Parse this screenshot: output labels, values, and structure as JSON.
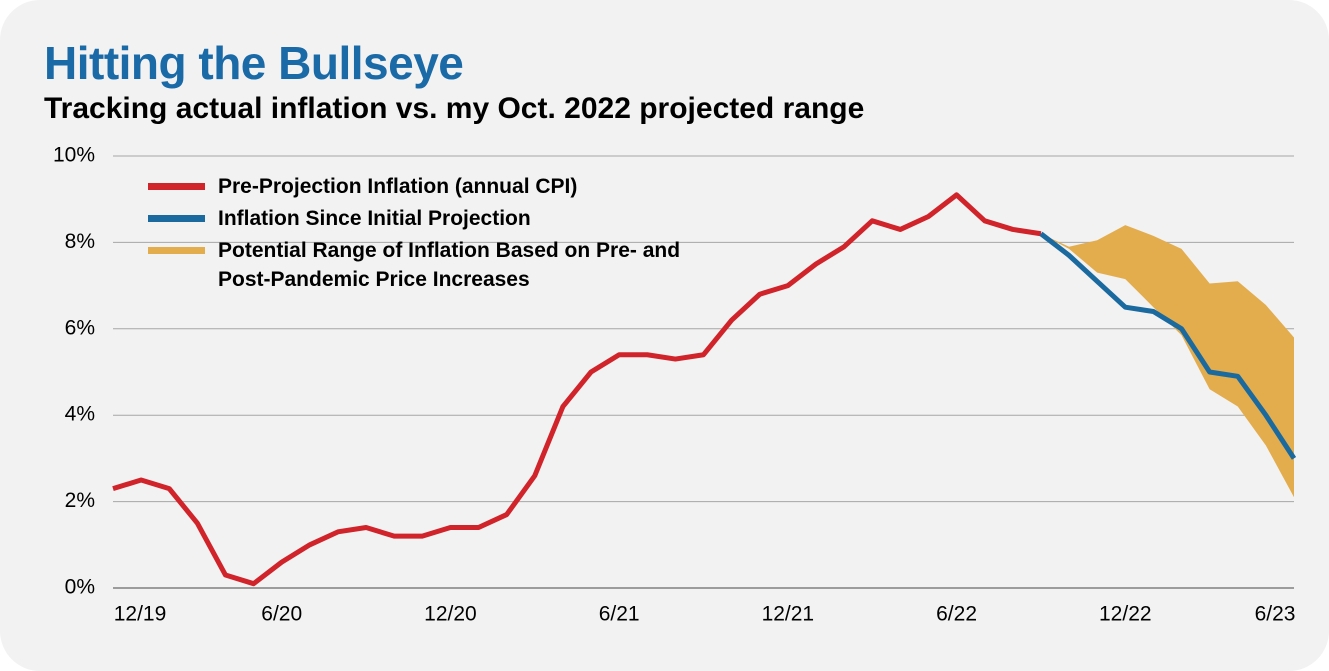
{
  "chart_data": {
    "type": "line",
    "title": "Hitting the Bullseye",
    "subtitle": "Tracking actual inflation vs. my Oct. 2022 projected range",
    "categories": [
      "12/19",
      null,
      null,
      null,
      null,
      null,
      "6/20",
      null,
      null,
      null,
      null,
      null,
      "12/20",
      null,
      null,
      null,
      null,
      null,
      "6/21",
      null,
      null,
      null,
      null,
      null,
      "12/21",
      null,
      null,
      null,
      null,
      null,
      "6/22",
      null,
      null,
      null,
      null,
      null,
      "12/22",
      null,
      null,
      null,
      null,
      null,
      "6/23"
    ],
    "series": [
      {
        "name": "Pre-Projection Inflation (annual CPI)",
        "color": "#d0232a",
        "values": [
          2.3,
          2.5,
          2.3,
          1.5,
          0.3,
          0.1,
          0.6,
          1.0,
          1.3,
          1.4,
          1.2,
          1.2,
          1.4,
          1.4,
          1.7,
          2.6,
          4.2,
          5.0,
          5.4,
          5.4,
          5.3,
          5.4,
          6.2,
          6.8,
          7.0,
          7.5,
          7.9,
          8.5,
          8.3,
          8.6,
          9.1,
          8.5,
          8.3,
          8.2,
          null,
          null,
          null,
          null,
          null,
          null,
          null,
          null,
          null
        ]
      },
      {
        "name": "Inflation Since Initial Projection",
        "color": "#1a6aa0",
        "values": [
          null,
          null,
          null,
          null,
          null,
          null,
          null,
          null,
          null,
          null,
          null,
          null,
          null,
          null,
          null,
          null,
          null,
          null,
          null,
          null,
          null,
          null,
          null,
          null,
          null,
          null,
          null,
          null,
          null,
          null,
          null,
          null,
          null,
          8.2,
          7.7,
          7.1,
          6.5,
          6.4,
          6.0,
          5.0,
          4.9,
          4.0,
          3.0
        ]
      }
    ],
    "band": {
      "name": "Potential Range of Inflation Based on Pre- and Post-Pandemic Price Increases",
      "color": "#e3ad4d",
      "low": [
        null,
        null,
        null,
        null,
        null,
        null,
        null,
        null,
        null,
        null,
        null,
        null,
        null,
        null,
        null,
        null,
        null,
        null,
        null,
        null,
        null,
        null,
        null,
        null,
        null,
        null,
        null,
        null,
        null,
        null,
        null,
        null,
        null,
        8.2,
        7.85,
        7.3,
        7.15,
        6.5,
        5.85,
        4.6,
        4.2,
        3.3,
        2.1
      ],
      "high": [
        null,
        null,
        null,
        null,
        null,
        null,
        null,
        null,
        null,
        null,
        null,
        null,
        null,
        null,
        null,
        null,
        null,
        null,
        null,
        null,
        null,
        null,
        null,
        null,
        null,
        null,
        null,
        null,
        null,
        null,
        null,
        null,
        null,
        8.2,
        7.9,
        8.05,
        8.4,
        8.15,
        7.85,
        7.05,
        7.1,
        6.55,
        5.8
      ]
    },
    "ylim": [
      0,
      10
    ],
    "yticks": [
      {
        "value": 0,
        "label": "0%"
      },
      {
        "value": 2,
        "label": "2%"
      },
      {
        "value": 4,
        "label": "4%"
      },
      {
        "value": 6,
        "label": "6%"
      },
      {
        "value": 8,
        "label": "8%"
      },
      {
        "value": 10,
        "label": "10%"
      }
    ],
    "grid": true
  }
}
